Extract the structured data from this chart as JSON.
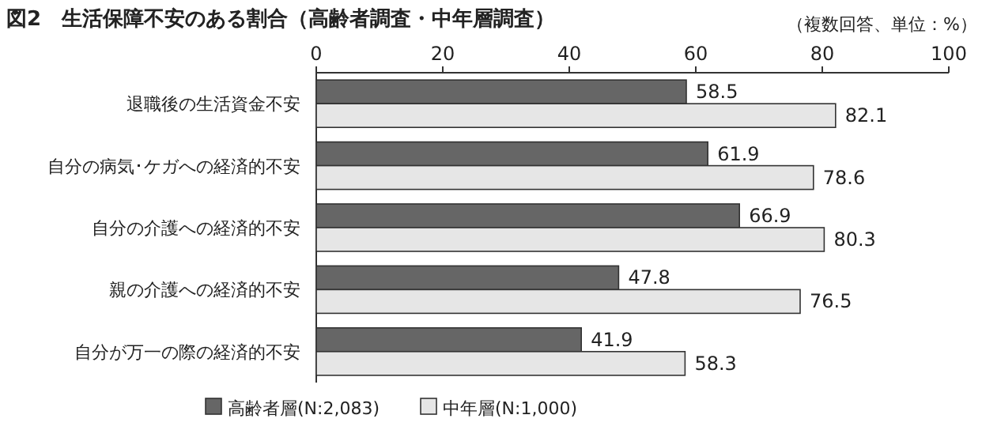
{
  "chart_data": {
    "type": "bar",
    "orientation": "horizontal",
    "title": "図2　生活保障不安のある割合（高齢者調査・中年層調査）",
    "annotations": [
      "（複数回答、単位：%）"
    ],
    "categories": [
      "退職後の生活資金不安",
      "自分の病気･ケガへの経済的不安",
      "自分の介護への経済的不安",
      "親の介護への経済的不安",
      "自分が万一の際の経済的不安"
    ],
    "series": [
      {
        "name": "高齢者層(N:2,083)",
        "color": "#666666",
        "values": [
          58.5,
          61.9,
          66.9,
          47.8,
          41.9
        ]
      },
      {
        "name": "中年層(N:1,000)",
        "color": "#e6e6e6",
        "values": [
          82.1,
          78.6,
          80.3,
          76.5,
          58.3
        ]
      }
    ],
    "xlim": [
      0,
      100
    ],
    "xticks": [
      0,
      20,
      40,
      60,
      80,
      100
    ],
    "data_labels": true,
    "grid": false,
    "legend": "bottom"
  }
}
